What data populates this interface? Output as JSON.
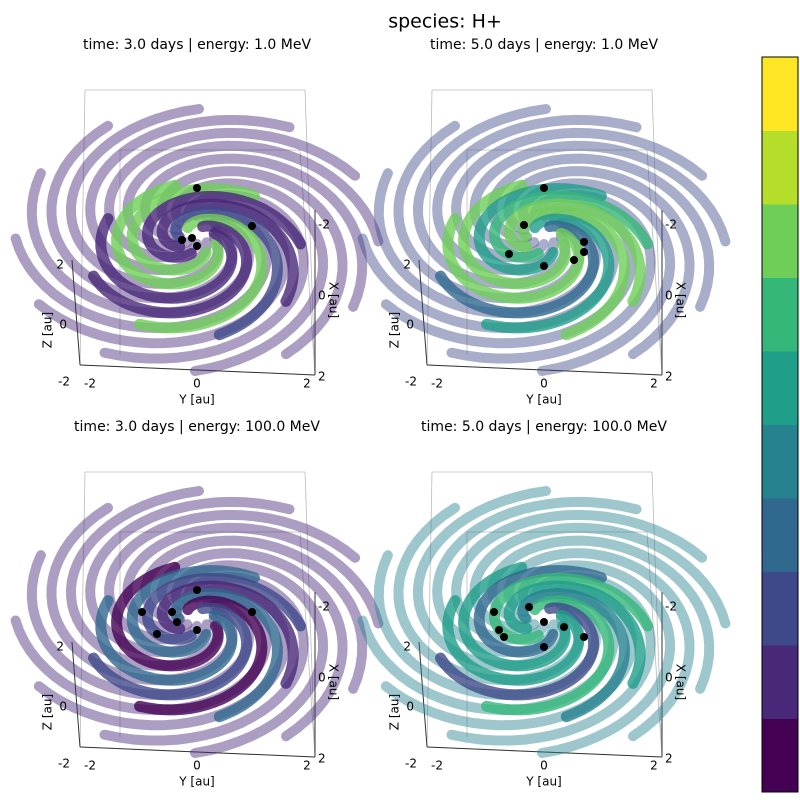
{
  "title": "species: H+",
  "chart_data": [
    {
      "type": "line3d",
      "title": "time: 3.0 days | energy: 1.0 MeV",
      "xlabel": "X [au]",
      "ylabel": "Y [au]",
      "zlabel": "Z [au]",
      "xticks": [
        -2,
        0,
        2
      ],
      "yticks": [
        -2,
        0,
        2
      ],
      "zticks": [
        -2,
        0,
        2
      ]
    },
    {
      "type": "line3d",
      "title": "time: 5.0 days | energy: 1.0 MeV",
      "xlabel": "X [au]",
      "ylabel": "Y [au]",
      "zlabel": "Z [au]",
      "xticks": [
        -2,
        0,
        2
      ],
      "yticks": [
        -2,
        0,
        2
      ],
      "zticks": [
        -2,
        0,
        2
      ]
    },
    {
      "type": "line3d",
      "title": "time: 3.0 days | energy: 100.0 MeV",
      "xlabel": "X [au]",
      "ylabel": "Y [au]",
      "zlabel": "Z [au]",
      "xticks": [
        -2,
        0,
        2
      ],
      "yticks": [
        -2,
        0,
        2
      ],
      "zticks": [
        -2,
        0,
        2
      ]
    },
    {
      "type": "line3d",
      "title": "time: 5.0 days | energy: 100.0 MeV",
      "xlabel": "X [au]",
      "ylabel": "Y [au]",
      "zlabel": "Z [au]",
      "xticks": [
        -2,
        0,
        2
      ],
      "yticks": [
        -2,
        0,
        2
      ],
      "zticks": [
        -2,
        0,
        2
      ]
    }
  ],
  "colorbar": {
    "colors": [
      "#440154",
      "#482878",
      "#3e4989",
      "#31688e",
      "#26828e",
      "#1f9e89",
      "#35b779",
      "#6ece58",
      "#b5de2b",
      "#fde725"
    ]
  }
}
